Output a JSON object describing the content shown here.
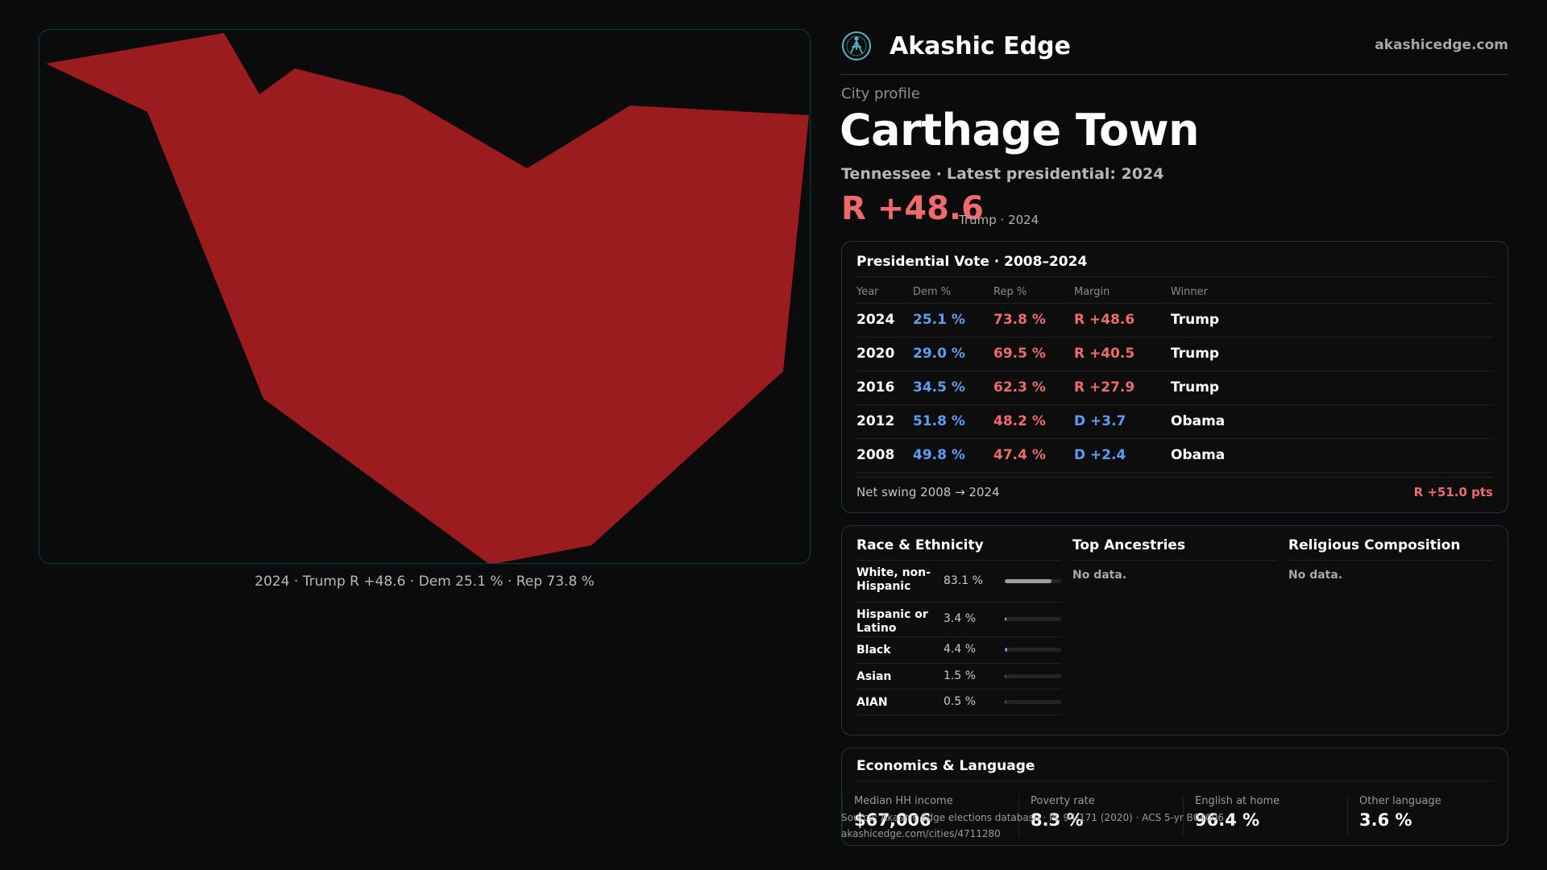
{
  "map": {
    "caption": "2024 · Trump R +48.6 · Dem 25.1 % · Rep 73.8 %",
    "fill_color": "#9b1c1f"
  },
  "brand": {
    "name": "Akashic Edge",
    "domain": "akashicedge.com",
    "logo_icon": "compass-figure-icon",
    "accent": "#4fb6c4"
  },
  "profile": {
    "eyebrow": "City profile",
    "city": "Carthage Town",
    "state": "Tennessee",
    "latest": "Latest presidential: 2024",
    "headline_margin": "R +48.6",
    "headline_note": "Trump · 2024"
  },
  "vote": {
    "title": "Presidential Vote · 2008–2024",
    "headers": {
      "year": "Year",
      "dem": "Dem %",
      "rep": "Rep %",
      "margin": "Margin",
      "winner": "Winner"
    },
    "rows": [
      {
        "year": "2024",
        "dem": "25.1 %",
        "rep": "73.8 %",
        "margin": "R +48.6",
        "winner": "Trump",
        "party": "rep"
      },
      {
        "year": "2020",
        "dem": "29.0 %",
        "rep": "69.5 %",
        "margin": "R +40.5",
        "winner": "Trump",
        "party": "rep"
      },
      {
        "year": "2016",
        "dem": "34.5 %",
        "rep": "62.3 %",
        "margin": "R +27.9",
        "winner": "Trump",
        "party": "rep"
      },
      {
        "year": "2012",
        "dem": "51.8 %",
        "rep": "48.2 %",
        "margin": "D +3.7",
        "winner": "Obama",
        "party": "dem"
      },
      {
        "year": "2008",
        "dem": "49.8 %",
        "rep": "47.4 %",
        "margin": "D +2.4",
        "winner": "Obama",
        "party": "dem"
      }
    ],
    "swing_label": "Net swing 2008 → 2024",
    "swing_value": "R +51.0 pts",
    "colors": {
      "dem": "#5c9df2",
      "rep": "#ef6b6b"
    }
  },
  "race": {
    "title": "Race & Ethnicity",
    "rows": [
      {
        "label": "White, non-Hispanic",
        "pct": "83.1 %",
        "share": 0.831,
        "color": "#9a9ea5"
      },
      {
        "label": "Hispanic or Latino",
        "pct": "3.4 %",
        "share": 0.034,
        "color": "#e0a23a"
      },
      {
        "label": "Black",
        "pct": "4.4 %",
        "share": 0.044,
        "color": "#8f88f0"
      },
      {
        "label": "Asian",
        "pct": "1.5 %",
        "share": 0.015,
        "color": "#3fb58a"
      },
      {
        "label": "AIAN",
        "pct": "0.5 %",
        "share": 0.005,
        "color": "#c46b5a"
      }
    ]
  },
  "ancestries": {
    "title": "Top Ancestries",
    "empty": "No data."
  },
  "religion": {
    "title": "Religious Composition",
    "empty": "No data."
  },
  "economics": {
    "title": "Economics & Language",
    "stats": [
      {
        "label": "Median HH income",
        "value": "$67,006"
      },
      {
        "label": "Poverty rate",
        "value": "8.3 %"
      },
      {
        "label": "English at home",
        "value": "96.4 %"
      },
      {
        "label": "Other language",
        "value": "3.6 %"
      }
    ]
  },
  "source": {
    "line1": "Source: Akashic Edge elections database · PL 94-171 (2020) · ACS 5-yr B04006",
    "line2": "akashicedge.com/cities/4711280"
  }
}
